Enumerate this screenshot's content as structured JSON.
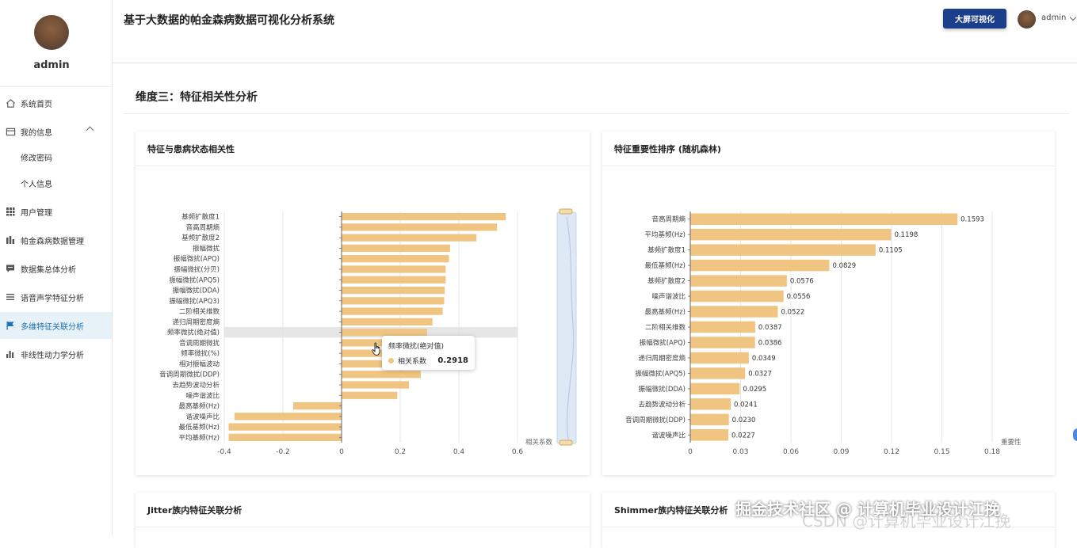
{
  "sidebar": {
    "username": "admin",
    "items": [
      {
        "label": "系统首页",
        "icon": "home-icon"
      },
      {
        "label": "我的信息",
        "icon": "profile-card-icon"
      },
      {
        "label": "修改密码",
        "icon": ""
      },
      {
        "label": "个人信息",
        "icon": ""
      },
      {
        "label": "用户管理",
        "icon": "grid-icon"
      },
      {
        "label": "帕金森病数据管理",
        "icon": "bar-chart-icon"
      },
      {
        "label": "数据集总体分析",
        "icon": "message-icon"
      },
      {
        "label": "语音声学特征分析",
        "icon": "list-icon"
      },
      {
        "label": "多维特征关联分析",
        "icon": "flag-icon"
      },
      {
        "label": "非线性动力学分析",
        "icon": "column-chart-icon"
      }
    ],
    "active_index": 8
  },
  "header": {
    "title": "基于大数据的帕金森病数据可视化分析系统",
    "big_screen_button": "大屏可视化",
    "user": "admin"
  },
  "section": {
    "title": "维度三：特征相关性分析"
  },
  "cards": {
    "corr_title": "特征与患病状态相关性",
    "importance_title": "特征重要性排序 (随机森林)",
    "jitter_title": "Jitter族内特征关联分析",
    "shimmer_title": "Shimmer族内特征关联分析"
  },
  "tooltip": {
    "title": "频率微扰(绝对值)",
    "series": "相关系数",
    "value": "0.2918"
  },
  "watermark": {
    "text": "掘金技术社区 @ 计算机毕业设计江挽",
    "csdn": "CSDN @计算机毕业设计江挽"
  },
  "colors": {
    "bar": "#efc581",
    "accent": "#1c3f8c",
    "active_menu_bg": "#e6f2f7"
  },
  "chart_data": [
    {
      "type": "bar",
      "orientation": "horizontal",
      "title": "特征与患病状态相关性",
      "xlabel": "相关系数",
      "xlim": [
        -0.4,
        0.6
      ],
      "xticks": [
        "-0.4",
        "-0.2",
        "0",
        "0.2",
        "0.4",
        "0.6"
      ],
      "categories": [
        "基频扩散度1",
        "音高周期熵",
        "基频扩散度2",
        "振幅微扰",
        "振幅微扰(APQ)",
        "振幅微扰(分贝)",
        "振幅微扰(APQ5)",
        "振幅微扰(DDA)",
        "振幅微扰(APQ3)",
        "二阶相关维数",
        "递归周期密度熵",
        "频率微扰(绝对值)",
        "音调周期微扰",
        "频率微扰(%)",
        "相对振幅波动",
        "音调周期微扰(DDP)",
        "去趋势波动分析",
        "噪声谐波比",
        "最高基频(Hz)",
        "谐波噪声比",
        "最低基频(Hz)",
        "平均基频(Hz)"
      ],
      "values": [
        0.56,
        0.53,
        0.46,
        0.37,
        0.366,
        0.355,
        0.355,
        0.352,
        0.35,
        0.345,
        0.31,
        0.2918,
        0.28,
        0.28,
        0.27,
        0.27,
        0.23,
        0.19,
        -0.165,
        -0.365,
        -0.385,
        -0.385
      ],
      "highlight": "频率微扰(绝对值)",
      "grid": true
    },
    {
      "type": "bar",
      "orientation": "horizontal",
      "title": "特征重要性排序 (随机森林)",
      "xlabel": "重要性",
      "xlim": [
        0,
        0.18
      ],
      "xticks": [
        "0",
        "0.03",
        "0.06",
        "0.09",
        "0.12",
        "0.15",
        "0.18"
      ],
      "categories": [
        "音高周期熵",
        "平均基频(Hz)",
        "基频扩散度1",
        "最低基频(Hz)",
        "基频扩散度2",
        "噪声谐波比",
        "最高基频(Hz)",
        "二阶相关维数",
        "振幅微扰(APQ)",
        "递归周期密度熵",
        "振幅微扰(APQ5)",
        "振幅微扰(DDA)",
        "去趋势波动分析",
        "音调周期微扰(DDP)",
        "谐波噪声比"
      ],
      "values": [
        0.1593,
        0.1198,
        0.1105,
        0.0829,
        0.0576,
        0.0556,
        0.0522,
        0.0387,
        0.0386,
        0.0349,
        0.0327,
        0.0295,
        0.0241,
        0.023,
        0.0227
      ],
      "labels": [
        "0.1593",
        "0.1198",
        "0.1105",
        "0.0829",
        "0.0576",
        "0.0556",
        "0.0522",
        "0.0387",
        "0.0386",
        "0.0349",
        "0.0327",
        "0.0295",
        "0.0241",
        "0.0230",
        "0.0227"
      ],
      "grid": true
    }
  ]
}
